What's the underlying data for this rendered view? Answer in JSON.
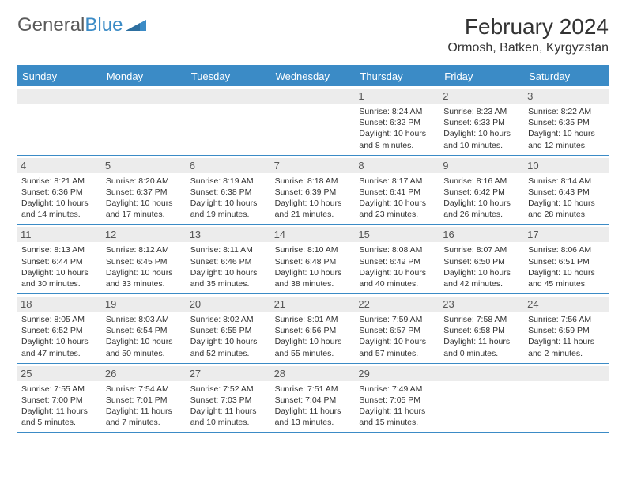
{
  "brand": {
    "part1": "General",
    "part2": "Blue"
  },
  "title": "February 2024",
  "location": "Ormosh, Batken, Kyrgyzstan",
  "colors": {
    "accent": "#3b8bc6",
    "header_bg": "#3b8bc6",
    "header_text": "#ffffff",
    "daynum_bg": "#ececec",
    "text": "#333333",
    "background": "#ffffff"
  },
  "dayNames": [
    "Sunday",
    "Monday",
    "Tuesday",
    "Wednesday",
    "Thursday",
    "Friday",
    "Saturday"
  ],
  "startOffset": 4,
  "days": [
    {
      "n": 1,
      "sunrise": "8:24 AM",
      "sunset": "6:32 PM",
      "daylight": "10 hours and 8 minutes."
    },
    {
      "n": 2,
      "sunrise": "8:23 AM",
      "sunset": "6:33 PM",
      "daylight": "10 hours and 10 minutes."
    },
    {
      "n": 3,
      "sunrise": "8:22 AM",
      "sunset": "6:35 PM",
      "daylight": "10 hours and 12 minutes."
    },
    {
      "n": 4,
      "sunrise": "8:21 AM",
      "sunset": "6:36 PM",
      "daylight": "10 hours and 14 minutes."
    },
    {
      "n": 5,
      "sunrise": "8:20 AM",
      "sunset": "6:37 PM",
      "daylight": "10 hours and 17 minutes."
    },
    {
      "n": 6,
      "sunrise": "8:19 AM",
      "sunset": "6:38 PM",
      "daylight": "10 hours and 19 minutes."
    },
    {
      "n": 7,
      "sunrise": "8:18 AM",
      "sunset": "6:39 PM",
      "daylight": "10 hours and 21 minutes."
    },
    {
      "n": 8,
      "sunrise": "8:17 AM",
      "sunset": "6:41 PM",
      "daylight": "10 hours and 23 minutes."
    },
    {
      "n": 9,
      "sunrise": "8:16 AM",
      "sunset": "6:42 PM",
      "daylight": "10 hours and 26 minutes."
    },
    {
      "n": 10,
      "sunrise": "8:14 AM",
      "sunset": "6:43 PM",
      "daylight": "10 hours and 28 minutes."
    },
    {
      "n": 11,
      "sunrise": "8:13 AM",
      "sunset": "6:44 PM",
      "daylight": "10 hours and 30 minutes."
    },
    {
      "n": 12,
      "sunrise": "8:12 AM",
      "sunset": "6:45 PM",
      "daylight": "10 hours and 33 minutes."
    },
    {
      "n": 13,
      "sunrise": "8:11 AM",
      "sunset": "6:46 PM",
      "daylight": "10 hours and 35 minutes."
    },
    {
      "n": 14,
      "sunrise": "8:10 AM",
      "sunset": "6:48 PM",
      "daylight": "10 hours and 38 minutes."
    },
    {
      "n": 15,
      "sunrise": "8:08 AM",
      "sunset": "6:49 PM",
      "daylight": "10 hours and 40 minutes."
    },
    {
      "n": 16,
      "sunrise": "8:07 AM",
      "sunset": "6:50 PM",
      "daylight": "10 hours and 42 minutes."
    },
    {
      "n": 17,
      "sunrise": "8:06 AM",
      "sunset": "6:51 PM",
      "daylight": "10 hours and 45 minutes."
    },
    {
      "n": 18,
      "sunrise": "8:05 AM",
      "sunset": "6:52 PM",
      "daylight": "10 hours and 47 minutes."
    },
    {
      "n": 19,
      "sunrise": "8:03 AM",
      "sunset": "6:54 PM",
      "daylight": "10 hours and 50 minutes."
    },
    {
      "n": 20,
      "sunrise": "8:02 AM",
      "sunset": "6:55 PM",
      "daylight": "10 hours and 52 minutes."
    },
    {
      "n": 21,
      "sunrise": "8:01 AM",
      "sunset": "6:56 PM",
      "daylight": "10 hours and 55 minutes."
    },
    {
      "n": 22,
      "sunrise": "7:59 AM",
      "sunset": "6:57 PM",
      "daylight": "10 hours and 57 minutes."
    },
    {
      "n": 23,
      "sunrise": "7:58 AM",
      "sunset": "6:58 PM",
      "daylight": "11 hours and 0 minutes."
    },
    {
      "n": 24,
      "sunrise": "7:56 AM",
      "sunset": "6:59 PM",
      "daylight": "11 hours and 2 minutes."
    },
    {
      "n": 25,
      "sunrise": "7:55 AM",
      "sunset": "7:00 PM",
      "daylight": "11 hours and 5 minutes."
    },
    {
      "n": 26,
      "sunrise": "7:54 AM",
      "sunset": "7:01 PM",
      "daylight": "11 hours and 7 minutes."
    },
    {
      "n": 27,
      "sunrise": "7:52 AM",
      "sunset": "7:03 PM",
      "daylight": "11 hours and 10 minutes."
    },
    {
      "n": 28,
      "sunrise": "7:51 AM",
      "sunset": "7:04 PM",
      "daylight": "11 hours and 13 minutes."
    },
    {
      "n": 29,
      "sunrise": "7:49 AM",
      "sunset": "7:05 PM",
      "daylight": "11 hours and 15 minutes."
    }
  ],
  "labels": {
    "sunrise": "Sunrise:",
    "sunset": "Sunset:",
    "daylight": "Daylight:"
  }
}
